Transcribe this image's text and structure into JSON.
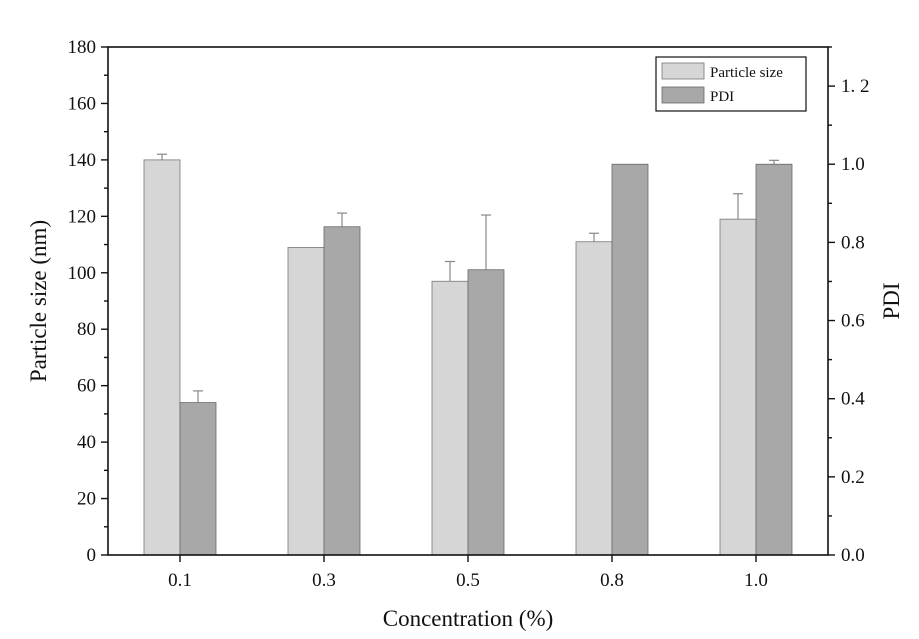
{
  "chart_data": {
    "type": "bar",
    "title": "",
    "xlabel": "Concentration (%)",
    "ylabel": "Particle size (nm)",
    "y2label": "PDI",
    "categories": [
      "0.1",
      "0.3",
      "0.5",
      "0.8",
      "1.0"
    ],
    "ylim": [
      0,
      180
    ],
    "y2lim": [
      0,
      1.3
    ],
    "yticks": [
      "0",
      "20",
      "40",
      "60",
      "80",
      "100",
      "120",
      "140",
      "160",
      "180"
    ],
    "y2ticks": [
      "0.0",
      "0.2",
      "0.4",
      "0.6",
      "0.8",
      "1.0",
      "1. 2"
    ],
    "legend_position": "top-right",
    "series": [
      {
        "name": "Particle size",
        "axis": "left",
        "values": [
          140,
          109,
          97,
          111,
          119
        ],
        "errors": [
          2,
          0,
          7,
          3,
          9
        ],
        "color": "#d6d6d6"
      },
      {
        "name": "PDI",
        "axis": "right",
        "values": [
          0.39,
          0.84,
          0.73,
          1.0,
          1.0
        ],
        "errors": [
          0.03,
          0.035,
          0.14,
          0.0,
          0.01
        ],
        "color": "#a8a8a8"
      }
    ]
  }
}
